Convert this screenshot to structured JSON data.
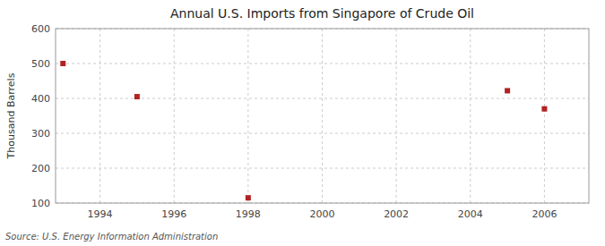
{
  "chart_data": {
    "type": "scatter",
    "title": "Annual U.S. Imports from Singapore of Crude Oil",
    "ylabel": "Thousand Barrels",
    "source": "Source: U.S. Energy Information Administration",
    "x": [
      1993,
      1995,
      1998,
      2005,
      2006
    ],
    "values": [
      500,
      405,
      115,
      422,
      370
    ],
    "color": "#b22222",
    "marker": "square",
    "xlim": [
      1992.8,
      2007.2
    ],
    "ylim": [
      100,
      600
    ],
    "xticks": [
      1994,
      1996,
      1998,
      2000,
      2002,
      2004,
      2006
    ],
    "yticks": [
      100,
      200,
      300,
      400,
      500,
      600
    ],
    "grid": true
  }
}
